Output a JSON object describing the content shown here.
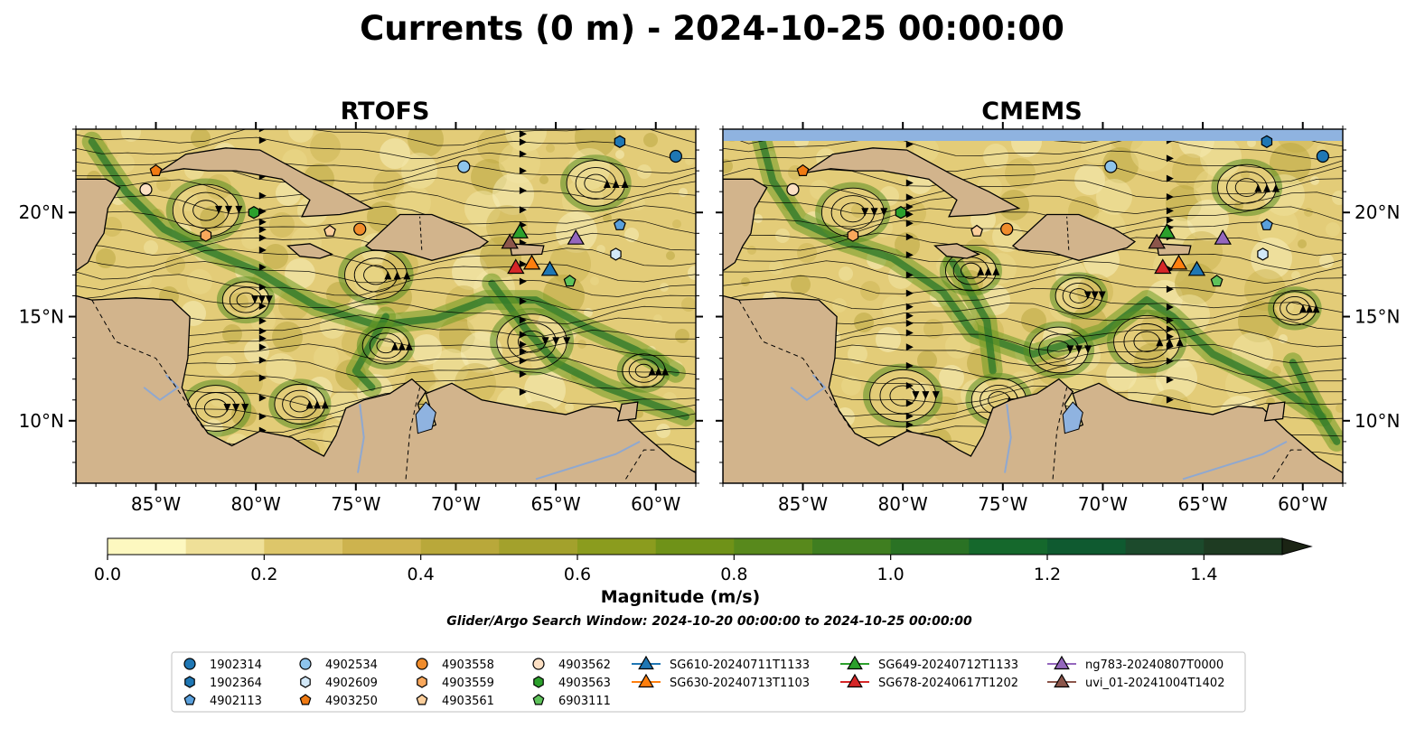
{
  "title": "Currents (0 m) - 2024-10-25 00:00:00",
  "panels": [
    {
      "title": "RTOFS",
      "top_band": false
    },
    {
      "title": "CMEMS",
      "top_band": true
    }
  ],
  "map": {
    "lon_range": [
      -89,
      -58
    ],
    "lat_range": [
      7,
      24
    ],
    "lon_ticks": [
      "85°W",
      "80°W",
      "75°W",
      "70°W",
      "65°W",
      "60°W"
    ],
    "lon_tick_values": [
      -85,
      -80,
      -75,
      -70,
      -65,
      -60
    ],
    "lat_ticks": [
      "20°N",
      "15°N",
      "10°N"
    ],
    "lat_tick_values": [
      20,
      15,
      10
    ]
  },
  "colorbar": {
    "label": "Magnitude (m/s)",
    "min": 0.0,
    "max": 1.5,
    "tick_labels": [
      "0.0",
      "0.2",
      "0.4",
      "0.6",
      "0.8",
      "1.0",
      "1.2",
      "1.4"
    ],
    "tick_values": [
      0.0,
      0.2,
      0.4,
      0.6,
      0.8,
      1.0,
      1.2,
      1.4
    ],
    "colors": [
      "#fdf8c0",
      "#efe098",
      "#ddc66a",
      "#cdb34e",
      "#b9a83a",
      "#a3a12c",
      "#8b9c1e",
      "#6f9218",
      "#58891c",
      "#3f7e20",
      "#2a7224",
      "#15682c",
      "#0f5a30",
      "#1c4a2c",
      "#1e3b22",
      "#1c2d18",
      "#1b2414"
    ],
    "extend": "max"
  },
  "search_window": "Glider/Argo Search Window: 2024-10-20 00:00:00 to 2024-10-25 00:00:00",
  "legend": {
    "columns": [
      [
        {
          "label": "1902314",
          "marker": "circle",
          "color": "#1f77b4"
        },
        {
          "label": "1902364",
          "marker": "hexagon",
          "color": "#1f77b4"
        },
        {
          "label": "4902113",
          "marker": "pentagon",
          "color": "#5aa0dc"
        }
      ],
      [
        {
          "label": "4902534",
          "marker": "circle",
          "color": "#8ec4ec"
        },
        {
          "label": "4902609",
          "marker": "hexagon",
          "color": "#d2e8f8"
        },
        {
          "label": "4903250",
          "marker": "pentagon",
          "color": "#f07a12"
        }
      ],
      [
        {
          "label": "4903558",
          "marker": "circle",
          "color": "#f08c2c"
        },
        {
          "label": "4903559",
          "marker": "hexagon",
          "color": "#f9a85c"
        },
        {
          "label": "4903561",
          "marker": "pentagon",
          "color": "#fccf9c"
        }
      ],
      [
        {
          "label": "4903562",
          "marker": "circle",
          "color": "#fde0c4"
        },
        {
          "label": "4903563",
          "marker": "hexagon",
          "color": "#2ca02c"
        },
        {
          "label": "6903111",
          "marker": "pentagon",
          "color": "#5ec25a"
        }
      ],
      [
        {
          "label": "SG610-20240711T1133",
          "marker": "triangle-line",
          "color": "#1f77b4"
        },
        {
          "label": "SG630-20240713T1103",
          "marker": "triangle-line",
          "color": "#ff7f0e"
        }
      ],
      [
        {
          "label": "SG649-20240712T1133",
          "marker": "triangle-line",
          "color": "#2ca02c"
        },
        {
          "label": "SG678-20240617T1202",
          "marker": "triangle-line",
          "color": "#d62728"
        }
      ],
      [
        {
          "label": "ng783-20240807T0000",
          "marker": "triangle-line",
          "color": "#9467bd"
        },
        {
          "label": "uvi_01-20241004T1402",
          "marker": "triangle-line",
          "color": "#8c564b"
        }
      ]
    ]
  },
  "floats": [
    {
      "id": "1902314",
      "marker": "circle",
      "color": "#1f77b4",
      "lon": -59.0,
      "lat": 22.7
    },
    {
      "id": "1902364",
      "marker": "hexagon",
      "color": "#1f77b4",
      "lon": -61.8,
      "lat": 23.4
    },
    {
      "id": "4902113",
      "marker": "pentagon",
      "color": "#5aa0dc",
      "lon": -61.8,
      "lat": 19.4
    },
    {
      "id": "4902534",
      "marker": "circle",
      "color": "#8ec4ec",
      "lon": -69.6,
      "lat": 22.2
    },
    {
      "id": "4902609",
      "marker": "hexagon",
      "color": "#d2e8f8",
      "lon": -62.0,
      "lat": 18.0
    },
    {
      "id": "4903250",
      "marker": "pentagon",
      "color": "#f07a12",
      "lon": -85.0,
      "lat": 22.0
    },
    {
      "id": "4903558",
      "marker": "circle",
      "color": "#f08c2c",
      "lon": -74.8,
      "lat": 19.2
    },
    {
      "id": "4903559",
      "marker": "hexagon",
      "color": "#f9a85c",
      "lon": -82.5,
      "lat": 18.9
    },
    {
      "id": "4903561",
      "marker": "pentagon",
      "color": "#fccf9c",
      "lon": -76.3,
      "lat": 19.1
    },
    {
      "id": "4903562",
      "marker": "circle",
      "color": "#fde0c4",
      "lon": -85.5,
      "lat": 21.1
    },
    {
      "id": "4903563",
      "marker": "hexagon",
      "color": "#2ca02c",
      "lon": -80.1,
      "lat": 20.0
    },
    {
      "id": "6903111",
      "marker": "pentagon",
      "color": "#5ec25a",
      "lon": -64.3,
      "lat": 16.7
    }
  ],
  "gliders": [
    {
      "id": "SG610-20240711T1133",
      "color": "#1f77b4",
      "lon": -65.3,
      "lat": 17.2
    },
    {
      "id": "SG630-20240713T1103",
      "color": "#ff7f0e",
      "lon": -66.2,
      "lat": 17.5
    },
    {
      "id": "SG649-20240712T1133",
      "color": "#2ca02c",
      "lon": -66.8,
      "lat": 19.0
    },
    {
      "id": "SG678-20240617T1202",
      "color": "#d62728",
      "lon": -67.0,
      "lat": 17.3
    },
    {
      "id": "ng783-20240807T0000",
      "color": "#9467bd",
      "lon": -64.0,
      "lat": 18.7
    },
    {
      "id": "uvi_01-20241004T1402",
      "color": "#8c564b",
      "lon": -67.3,
      "lat": 18.5
    }
  ]
}
